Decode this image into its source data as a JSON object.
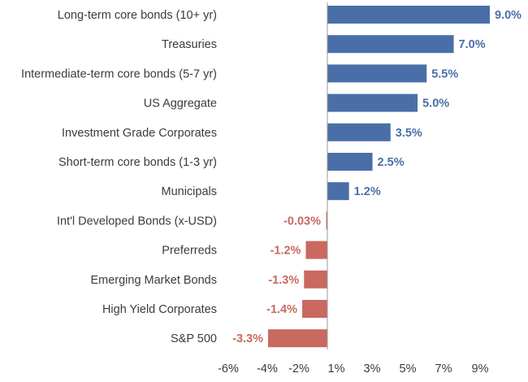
{
  "chart_data": {
    "type": "bar",
    "orientation": "horizontal",
    "categories": [
      "Long-term core bonds (10+ yr)",
      "Treasuries",
      "Intermediate-term core bonds (5-7 yr)",
      "US Aggregate",
      "Investment Grade Corporates",
      "Short-term core bonds (1-3 yr)",
      "Municipals",
      "Int'l Developed Bonds (x-USD)",
      "Preferreds",
      "Emerging Market Bonds",
      "High Yield Corporates",
      "S&P 500"
    ],
    "values": [
      9.0,
      7.0,
      5.5,
      5.0,
      3.5,
      2.5,
      1.2,
      -0.03,
      -1.2,
      -1.3,
      -1.4,
      -3.3
    ],
    "value_labels": [
      "9.0%",
      "7.0%",
      "5.5%",
      "5.0%",
      "3.5%",
      "2.5%",
      "1.2%",
      "-0.03%",
      "-1.2%",
      "-1.3%",
      "-1.4%",
      "-3.3%"
    ],
    "x_ticks": [
      {
        "value": -6,
        "label": "-6%"
      },
      {
        "value": -4,
        "label": "-4%"
      },
      {
        "value": -2,
        "label": "-2%"
      },
      {
        "value": 1,
        "label": "1%"
      },
      {
        "value": 3,
        "label": "3%"
      },
      {
        "value": 5,
        "label": "5%"
      },
      {
        "value": 7,
        "label": "7%"
      },
      {
        "value": 9,
        "label": "9%"
      }
    ],
    "title": "",
    "xlabel": "",
    "ylabel": "",
    "grid": false,
    "legend": "none",
    "colors": {
      "positive": "#4a6fa8",
      "negative": "#c9695f",
      "axis": "#9a9a9a"
    }
  }
}
